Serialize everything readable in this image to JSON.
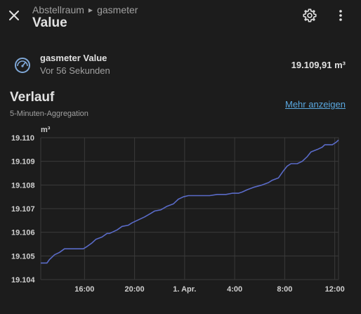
{
  "header": {
    "breadcrumb_area": "Abstellraum",
    "breadcrumb_device": "gasmeter",
    "title": "Value",
    "close_icon": "close-icon",
    "settings_icon": "gear-icon",
    "menu_icon": "more-vertical-icon"
  },
  "entity": {
    "icon": "gauge-icon",
    "name": "gasmeter Value",
    "last_changed": "Vor 56 Sekunden",
    "state": "19.109,91 m³"
  },
  "history": {
    "title": "Verlauf",
    "subtitle": "5-Minuten-Aggregation",
    "more_link": "Mehr anzeigen"
  },
  "colors": {
    "background": "#1c1c1c",
    "line": "#5a6bc8",
    "grid": "#3a3a3a",
    "link": "#5aa8e0"
  },
  "chart_data": {
    "type": "line",
    "title": "",
    "ylabel": "m³",
    "xlabel": "",
    "ylim": [
      19.104,
      19.11
    ],
    "y_ticks": [
      "19.110",
      "19.109",
      "19.108",
      "19.107",
      "19.106",
      "19.105",
      "19.104"
    ],
    "x_ticks": [
      {
        "label": "16:00",
        "h": 16,
        "bold": false
      },
      {
        "label": "20:00",
        "h": 20,
        "bold": false
      },
      {
        "label": "1. Apr.",
        "h": 24,
        "bold": true
      },
      {
        "label": "4:00",
        "h": 28,
        "bold": false
      },
      {
        "label": "8:00",
        "h": 32,
        "bold": false
      },
      {
        "label": "12:00",
        "h": 36,
        "bold": false
      }
    ],
    "xlim": [
      12.5,
      36.3
    ],
    "grid": true,
    "series": [
      {
        "name": "",
        "x": [
          12.5,
          13.0,
          13.2,
          13.6,
          14.0,
          14.4,
          14.8,
          15.4,
          15.9,
          16.2,
          16.6,
          16.9,
          17.4,
          17.8,
          18.0,
          18.6,
          19.0,
          19.5,
          19.8,
          20.2,
          20.8,
          21.3,
          21.6,
          22.1,
          22.6,
          23.1,
          23.5,
          23.9,
          24.3,
          24.6,
          24.9,
          25.4,
          26.0,
          26.6,
          26.9,
          27.3,
          27.8,
          28.3,
          28.6,
          29.0,
          29.5,
          30.2,
          30.7,
          31.0,
          31.5,
          31.9,
          32.2,
          32.5,
          33.0,
          33.4,
          33.8,
          34.1,
          34.6,
          35.0,
          35.2,
          35.8,
          36.1,
          36.3
        ],
        "y": [
          19.1047,
          19.1047,
          19.10485,
          19.10505,
          19.10515,
          19.1053,
          19.1053,
          19.1053,
          19.1053,
          19.1054,
          19.10555,
          19.1057,
          19.1058,
          19.10595,
          19.10595,
          19.1061,
          19.10625,
          19.1063,
          19.1064,
          19.1065,
          19.10665,
          19.1068,
          19.1069,
          19.10695,
          19.1071,
          19.1072,
          19.1074,
          19.1075,
          19.10755,
          19.10755,
          19.10755,
          19.10755,
          19.10755,
          19.1076,
          19.1076,
          19.1076,
          19.10765,
          19.10765,
          19.1077,
          19.1078,
          19.1079,
          19.108,
          19.1081,
          19.1082,
          19.1083,
          19.1086,
          19.1088,
          19.1089,
          19.1089,
          19.109,
          19.1092,
          19.1094,
          19.1095,
          19.1096,
          19.1097,
          19.1097,
          19.1098,
          19.1099
        ]
      }
    ]
  }
}
